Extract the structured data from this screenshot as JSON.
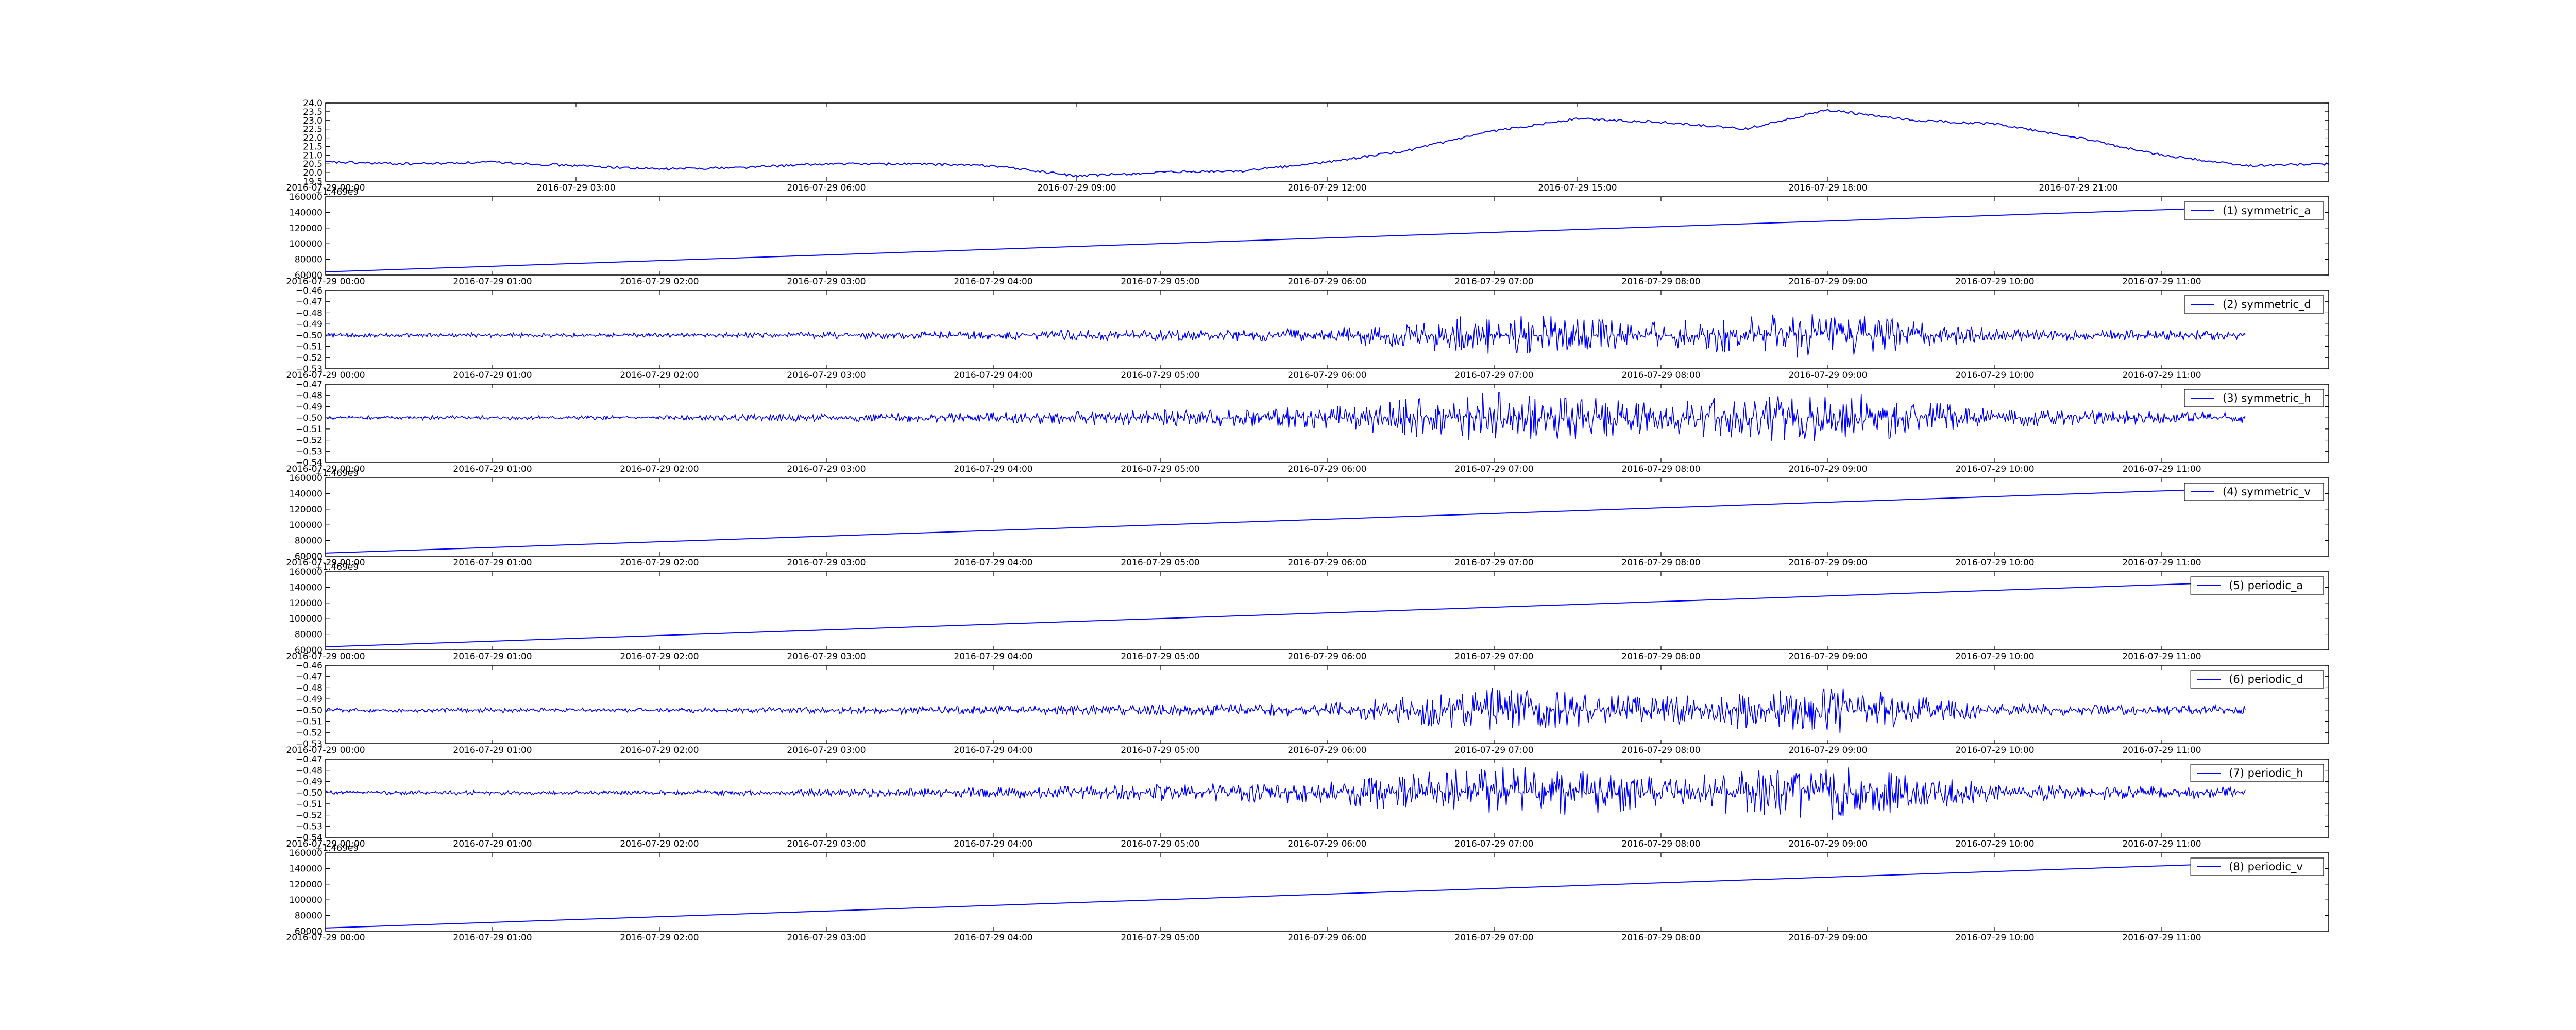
{
  "figure": {
    "background": "#ffffff",
    "line_color": "#0000ff"
  },
  "chart_data": [
    {
      "type": "line",
      "title": "",
      "xlabel": "",
      "ylabel": "",
      "xlim": [
        "2016-07-29 00:00",
        "2016-07-30 00:00"
      ],
      "ylim": [
        19.5,
        24.0
      ],
      "yticks": [
        "19.5",
        "20.0",
        "20.5",
        "21.0",
        "21.5",
        "22.0",
        "22.5",
        "23.0",
        "23.5",
        "24.0"
      ],
      "xticks": [
        "2016-07-29 00:00",
        "2016-07-29 03:00",
        "2016-07-29 06:00",
        "2016-07-29 09:00",
        "2016-07-29 12:00",
        "2016-07-29 15:00",
        "2016-07-29 18:00",
        "2016-07-29 21:00"
      ],
      "offset_text": "",
      "legend": "",
      "grid": false,
      "series": [
        {
          "x": [
            "2016-07-29 00:00",
            "2016-07-29 01:00",
            "2016-07-29 02:00",
            "2016-07-29 03:00",
            "2016-07-29 04:00",
            "2016-07-29 05:00",
            "2016-07-29 06:00",
            "2016-07-29 07:00",
            "2016-07-29 08:00",
            "2016-07-29 09:00",
            "2016-07-29 10:00",
            "2016-07-29 11:00",
            "2016-07-29 12:00",
            "2016-07-29 13:00",
            "2016-07-29 14:00",
            "2016-07-29 15:00",
            "2016-07-29 16:00",
            "2016-07-29 17:00",
            "2016-07-29 18:00",
            "2016-07-29 19:00",
            "2016-07-29 20:00",
            "2016-07-29 21:00",
            "2016-07-29 22:00",
            "2016-07-29 23:00",
            "2016-07-30 00:00"
          ],
          "values": [
            20.6,
            20.5,
            20.6,
            20.4,
            20.2,
            20.3,
            20.5,
            20.5,
            20.4,
            19.8,
            20.0,
            20.1,
            20.6,
            21.3,
            22.4,
            23.1,
            22.9,
            22.5,
            23.6,
            23.0,
            22.8,
            22.0,
            21.0,
            20.4,
            20.5
          ]
        }
      ]
    },
    {
      "type": "line",
      "title": "",
      "xlabel": "",
      "ylabel": "",
      "xlim": [
        "2016-07-29 00:00",
        "2016-07-29 12:00"
      ],
      "ylim": [
        60000,
        160000
      ],
      "yticks": [
        "60000",
        "80000",
        "100000",
        "120000",
        "140000",
        "160000"
      ],
      "xticks": [
        "2016-07-29 00:00",
        "2016-07-29 01:00",
        "2016-07-29 02:00",
        "2016-07-29 03:00",
        "2016-07-29 04:00",
        "2016-07-29 05:00",
        "2016-07-29 06:00",
        "2016-07-29 07:00",
        "2016-07-29 08:00",
        "2016-07-29 09:00",
        "2016-07-29 10:00",
        "2016-07-29 11:00"
      ],
      "offset_text": "+1.469e9",
      "legend": "(1) symmetric_a",
      "grid": false,
      "series": [
        {
          "name": "(1) symmetric_a",
          "x": [
            "2016-07-29 00:00",
            "2016-07-29 11:30"
          ],
          "values": [
            64000,
            147000
          ]
        }
      ]
    },
    {
      "type": "line",
      "title": "",
      "xlabel": "",
      "ylabel": "",
      "xlim": [
        "2016-07-29 00:00",
        "2016-07-29 12:00"
      ],
      "ylim": [
        -0.53,
        -0.46
      ],
      "yticks": [
        "−0.53",
        "−0.52",
        "−0.51",
        "−0.50",
        "−0.49",
        "−0.48",
        "−0.47",
        "−0.46"
      ],
      "xticks": [
        "2016-07-29 00:00",
        "2016-07-29 01:00",
        "2016-07-29 02:00",
        "2016-07-29 03:00",
        "2016-07-29 04:00",
        "2016-07-29 05:00",
        "2016-07-29 06:00",
        "2016-07-29 07:00",
        "2016-07-29 08:00",
        "2016-07-29 09:00",
        "2016-07-29 10:00",
        "2016-07-29 11:00"
      ],
      "offset_text": "",
      "legend": "(2) symmetric_d",
      "grid": false,
      "series": [
        {
          "name": "(2) symmetric_d",
          "baseline": -0.5,
          "x": [
            "2016-07-29 00:00",
            "2016-07-29 02:00",
            "2016-07-29 04:00",
            "2016-07-29 06:00",
            "2016-07-29 07:00",
            "2016-07-29 08:00",
            "2016-07-29 09:00",
            "2016-07-29 10:00",
            "2016-07-29 11:30"
          ],
          "amplitude": [
            0.002,
            0.002,
            0.004,
            0.006,
            0.02,
            0.012,
            0.022,
            0.006,
            0.004
          ]
        }
      ]
    },
    {
      "type": "line",
      "title": "",
      "xlabel": "",
      "ylabel": "",
      "xlim": [
        "2016-07-29 00:00",
        "2016-07-29 12:00"
      ],
      "ylim": [
        -0.54,
        -0.47
      ],
      "yticks": [
        "−0.54",
        "−0.53",
        "−0.52",
        "−0.51",
        "−0.50",
        "−0.49",
        "−0.48",
        "−0.47"
      ],
      "xticks": [
        "2016-07-29 00:00",
        "2016-07-29 01:00",
        "2016-07-29 02:00",
        "2016-07-29 03:00",
        "2016-07-29 04:00",
        "2016-07-29 05:00",
        "2016-07-29 06:00",
        "2016-07-29 07:00",
        "2016-07-29 08:00",
        "2016-07-29 09:00",
        "2016-07-29 10:00",
        "2016-07-29 11:00"
      ],
      "offset_text": "",
      "legend": "(3) symmetric_h",
      "grid": false,
      "series": [
        {
          "name": "(3) symmetric_h",
          "baseline": -0.5,
          "x": [
            "2016-07-29 00:00",
            "2016-07-29 02:00",
            "2016-07-29 04:00",
            "2016-07-29 06:00",
            "2016-07-29 07:00",
            "2016-07-29 08:00",
            "2016-07-29 09:00",
            "2016-07-29 10:00",
            "2016-07-29 11:30"
          ],
          "amplitude": [
            0.002,
            0.002,
            0.005,
            0.01,
            0.025,
            0.015,
            0.025,
            0.008,
            0.005
          ]
        }
      ]
    },
    {
      "type": "line",
      "title": "",
      "xlabel": "",
      "ylabel": "",
      "xlim": [
        "2016-07-29 00:00",
        "2016-07-29 12:00"
      ],
      "ylim": [
        60000,
        160000
      ],
      "yticks": [
        "60000",
        "80000",
        "100000",
        "120000",
        "140000",
        "160000"
      ],
      "xticks": [
        "2016-07-29 00:00",
        "2016-07-29 01:00",
        "2016-07-29 02:00",
        "2016-07-29 03:00",
        "2016-07-29 04:00",
        "2016-07-29 05:00",
        "2016-07-29 06:00",
        "2016-07-29 07:00",
        "2016-07-29 08:00",
        "2016-07-29 09:00",
        "2016-07-29 10:00",
        "2016-07-29 11:00"
      ],
      "offset_text": "+1.469e9",
      "legend": "(4) symmetric_v",
      "grid": false,
      "series": [
        {
          "name": "(4) symmetric_v",
          "x": [
            "2016-07-29 00:00",
            "2016-07-29 11:30"
          ],
          "values": [
            64000,
            147000
          ]
        }
      ]
    },
    {
      "type": "line",
      "title": "",
      "xlabel": "",
      "ylabel": "",
      "xlim": [
        "2016-07-29 00:00",
        "2016-07-29 12:00"
      ],
      "ylim": [
        60000,
        160000
      ],
      "yticks": [
        "60000",
        "80000",
        "100000",
        "120000",
        "140000",
        "160000"
      ],
      "xticks": [
        "2016-07-29 00:00",
        "2016-07-29 01:00",
        "2016-07-29 02:00",
        "2016-07-29 03:00",
        "2016-07-29 04:00",
        "2016-07-29 05:00",
        "2016-07-29 06:00",
        "2016-07-29 07:00",
        "2016-07-29 08:00",
        "2016-07-29 09:00",
        "2016-07-29 10:00",
        "2016-07-29 11:00"
      ],
      "offset_text": "+1.469e9",
      "legend": "(5) periodic_a",
      "grid": false,
      "series": [
        {
          "name": "(5) periodic_a",
          "x": [
            "2016-07-29 00:00",
            "2016-07-29 11:30"
          ],
          "values": [
            64000,
            147000
          ]
        }
      ]
    },
    {
      "type": "line",
      "title": "",
      "xlabel": "",
      "ylabel": "",
      "xlim": [
        "2016-07-29 00:00",
        "2016-07-29 12:00"
      ],
      "ylim": [
        -0.53,
        -0.46
      ],
      "yticks": [
        "−0.53",
        "−0.52",
        "−0.51",
        "−0.50",
        "−0.49",
        "−0.48",
        "−0.47",
        "−0.46"
      ],
      "xticks": [
        "2016-07-29 00:00",
        "2016-07-29 01:00",
        "2016-07-29 02:00",
        "2016-07-29 03:00",
        "2016-07-29 04:00",
        "2016-07-29 05:00",
        "2016-07-29 06:00",
        "2016-07-29 07:00",
        "2016-07-29 08:00",
        "2016-07-29 09:00",
        "2016-07-29 10:00",
        "2016-07-29 11:00"
      ],
      "offset_text": "",
      "legend": "(6) periodic_d",
      "grid": false,
      "series": [
        {
          "name": "(6) periodic_d",
          "baseline": -0.5,
          "x": [
            "2016-07-29 00:00",
            "2016-07-29 02:00",
            "2016-07-29 04:00",
            "2016-07-29 06:00",
            "2016-07-29 07:00",
            "2016-07-29 08:00",
            "2016-07-29 09:00",
            "2016-07-29 10:00",
            "2016-07-29 11:30"
          ],
          "amplitude": [
            0.002,
            0.002,
            0.004,
            0.006,
            0.02,
            0.012,
            0.022,
            0.006,
            0.004
          ]
        }
      ]
    },
    {
      "type": "line",
      "title": "",
      "xlabel": "",
      "ylabel": "",
      "xlim": [
        "2016-07-29 00:00",
        "2016-07-29 12:00"
      ],
      "ylim": [
        -0.54,
        -0.47
      ],
      "yticks": [
        "−0.54",
        "−0.53",
        "−0.52",
        "−0.51",
        "−0.50",
        "−0.49",
        "−0.48",
        "−0.47"
      ],
      "xticks": [
        "2016-07-29 00:00",
        "2016-07-29 01:00",
        "2016-07-29 02:00",
        "2016-07-29 03:00",
        "2016-07-29 04:00",
        "2016-07-29 05:00",
        "2016-07-29 06:00",
        "2016-07-29 07:00",
        "2016-07-29 08:00",
        "2016-07-29 09:00",
        "2016-07-29 10:00",
        "2016-07-29 11:00"
      ],
      "offset_text": "",
      "legend": "(7) periodic_h",
      "grid": false,
      "series": [
        {
          "name": "(7) periodic_h",
          "baseline": -0.5,
          "x": [
            "2016-07-29 00:00",
            "2016-07-29 02:00",
            "2016-07-29 04:00",
            "2016-07-29 06:00",
            "2016-07-29 07:00",
            "2016-07-29 08:00",
            "2016-07-29 09:00",
            "2016-07-29 10:00",
            "2016-07-29 11:30"
          ],
          "amplitude": [
            0.002,
            0.002,
            0.005,
            0.01,
            0.025,
            0.015,
            0.025,
            0.008,
            0.005
          ]
        }
      ]
    },
    {
      "type": "line",
      "title": "",
      "xlabel": "",
      "ylabel": "",
      "xlim": [
        "2016-07-29 00:00",
        "2016-07-29 12:00"
      ],
      "ylim": [
        60000,
        160000
      ],
      "yticks": [
        "60000",
        "80000",
        "100000",
        "120000",
        "140000",
        "160000"
      ],
      "xticks": [
        "2016-07-29 00:00",
        "2016-07-29 01:00",
        "2016-07-29 02:00",
        "2016-07-29 03:00",
        "2016-07-29 04:00",
        "2016-07-29 05:00",
        "2016-07-29 06:00",
        "2016-07-29 07:00",
        "2016-07-29 08:00",
        "2016-07-29 09:00",
        "2016-07-29 10:00",
        "2016-07-29 11:00"
      ],
      "offset_text": "+1.469e9",
      "legend": "(8) periodic_v",
      "grid": false,
      "series": [
        {
          "name": "(8) periodic_v",
          "x": [
            "2016-07-29 00:00",
            "2016-07-29 11:30"
          ],
          "values": [
            64000,
            147000
          ]
        }
      ]
    }
  ]
}
